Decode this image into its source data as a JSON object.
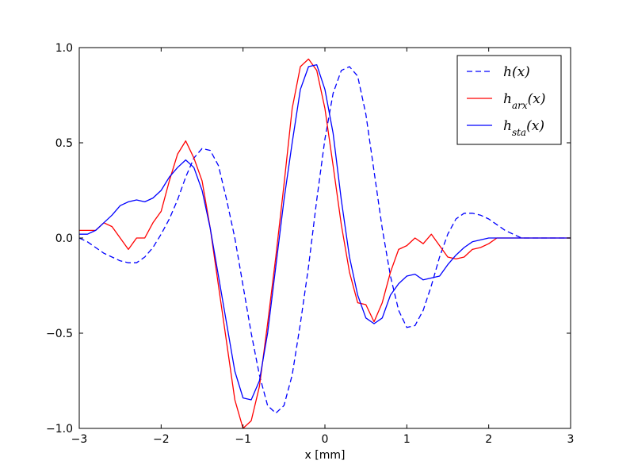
{
  "chart_data": {
    "type": "line",
    "xlabel": "x [mm]",
    "ylabel": "",
    "xlim": [
      -3,
      3
    ],
    "ylim": [
      -1.0,
      1.0
    ],
    "xticks": [
      -3,
      -2,
      -1,
      0,
      1,
      2,
      3
    ],
    "xtick_labels": [
      "−3",
      "−2",
      "−1",
      "0",
      "1",
      "2",
      "3"
    ],
    "yticks": [
      -1.0,
      -0.5,
      0.0,
      0.5,
      1.0
    ],
    "ytick_labels": [
      "−1.0",
      "−0.5",
      "0.0",
      "0.5",
      "1.0"
    ],
    "grid": false,
    "legend_position": "top-right",
    "series": [
      {
        "name": "h(x)",
        "legend_label": "h(x)",
        "color": "#0000ff",
        "dashed": true,
        "x": [
          -3.0,
          -2.9,
          -2.8,
          -2.7,
          -2.6,
          -2.5,
          -2.4,
          -2.3,
          -2.2,
          -2.1,
          -2.0,
          -1.9,
          -1.8,
          -1.7,
          -1.6,
          -1.5,
          -1.4,
          -1.3,
          -1.2,
          -1.1,
          -1.0,
          -0.9,
          -0.8,
          -0.7,
          -0.6,
          -0.5,
          -0.4,
          -0.3,
          -0.2,
          -0.1,
          0.0,
          0.1,
          0.2,
          0.3,
          0.4,
          0.5,
          0.6,
          0.7,
          0.8,
          0.9,
          1.0,
          1.1,
          1.2,
          1.3,
          1.4,
          1.5,
          1.6,
          1.7,
          1.8,
          1.9,
          2.0,
          2.1,
          2.2,
          2.3,
          2.4,
          2.5,
          2.6,
          2.7,
          2.8,
          2.9,
          3.0
        ],
        "y": [
          0.0,
          -0.02,
          -0.05,
          -0.08,
          -0.1,
          -0.12,
          -0.13,
          -0.13,
          -0.1,
          -0.05,
          0.02,
          0.1,
          0.2,
          0.32,
          0.42,
          0.47,
          0.46,
          0.38,
          0.2,
          0.0,
          -0.25,
          -0.5,
          -0.72,
          -0.88,
          -0.92,
          -0.88,
          -0.72,
          -0.45,
          -0.15,
          0.2,
          0.52,
          0.76,
          0.88,
          0.9,
          0.85,
          0.65,
          0.35,
          0.05,
          -0.2,
          -0.38,
          -0.47,
          -0.46,
          -0.38,
          -0.25,
          -0.1,
          0.02,
          0.1,
          0.13,
          0.13,
          0.12,
          0.1,
          0.07,
          0.04,
          0.02,
          0.0,
          0.0,
          0.0,
          0.0,
          0.0,
          0.0,
          0.0
        ]
      },
      {
        "name": "h_arx(x)",
        "legend_label": "h",
        "legend_sub": "arx",
        "legend_tail": "(x)",
        "color": "#ff0000",
        "dashed": false,
        "x": [
          -3.0,
          -2.9,
          -2.8,
          -2.7,
          -2.6,
          -2.5,
          -2.4,
          -2.3,
          -2.2,
          -2.1,
          -2.0,
          -1.9,
          -1.8,
          -1.7,
          -1.6,
          -1.5,
          -1.4,
          -1.3,
          -1.2,
          -1.1,
          -1.0,
          -0.9,
          -0.8,
          -0.7,
          -0.6,
          -0.5,
          -0.4,
          -0.3,
          -0.2,
          -0.1,
          0.0,
          0.1,
          0.2,
          0.3,
          0.4,
          0.5,
          0.6,
          0.7,
          0.8,
          0.9,
          1.0,
          1.1,
          1.2,
          1.3,
          1.4,
          1.5,
          1.6,
          1.7,
          1.8,
          1.9,
          2.0,
          2.1,
          2.2,
          2.3,
          2.4,
          2.5,
          2.6,
          2.7,
          2.8,
          2.9,
          3.0
        ],
        "y": [
          0.04,
          0.04,
          0.04,
          0.08,
          0.06,
          0.0,
          -0.06,
          0.0,
          0.0,
          0.08,
          0.14,
          0.3,
          0.44,
          0.51,
          0.42,
          0.3,
          0.05,
          -0.25,
          -0.55,
          -0.85,
          -1.0,
          -0.96,
          -0.78,
          -0.45,
          -0.1,
          0.28,
          0.68,
          0.9,
          0.94,
          0.88,
          0.68,
          0.38,
          0.07,
          -0.18,
          -0.34,
          -0.35,
          -0.44,
          -0.34,
          -0.18,
          -0.06,
          -0.04,
          0.0,
          -0.03,
          0.02,
          -0.04,
          -0.1,
          -0.11,
          -0.1,
          -0.06,
          -0.05,
          -0.03,
          0.0,
          0.0,
          0.0,
          0.0,
          0.0,
          0.0,
          0.0,
          0.0,
          0.0,
          0.0
        ]
      },
      {
        "name": "h_sta(x)",
        "legend_label": "h",
        "legend_sub": "sta",
        "legend_tail": "(x)",
        "color": "#0000ff",
        "dashed": false,
        "x": [
          -3.0,
          -2.9,
          -2.8,
          -2.7,
          -2.6,
          -2.5,
          -2.4,
          -2.3,
          -2.2,
          -2.1,
          -2.0,
          -1.9,
          -1.8,
          -1.7,
          -1.6,
          -1.5,
          -1.4,
          -1.3,
          -1.2,
          -1.1,
          -1.0,
          -0.9,
          -0.8,
          -0.7,
          -0.6,
          -0.5,
          -0.4,
          -0.3,
          -0.2,
          -0.1,
          0.0,
          0.1,
          0.2,
          0.3,
          0.4,
          0.5,
          0.6,
          0.7,
          0.8,
          0.9,
          1.0,
          1.1,
          1.2,
          1.3,
          1.4,
          1.5,
          1.6,
          1.7,
          1.8,
          1.9,
          2.0,
          2.1,
          2.2,
          2.3,
          2.4,
          2.5,
          2.6,
          2.7,
          2.8,
          2.9,
          3.0
        ],
        "y": [
          0.02,
          0.02,
          0.04,
          0.08,
          0.12,
          0.17,
          0.19,
          0.2,
          0.19,
          0.21,
          0.25,
          0.32,
          0.37,
          0.41,
          0.37,
          0.25,
          0.05,
          -0.2,
          -0.45,
          -0.7,
          -0.84,
          -0.85,
          -0.75,
          -0.5,
          -0.15,
          0.2,
          0.5,
          0.78,
          0.9,
          0.91,
          0.78,
          0.55,
          0.2,
          -0.1,
          -0.3,
          -0.42,
          -0.45,
          -0.42,
          -0.3,
          -0.24,
          -0.2,
          -0.19,
          -0.22,
          -0.21,
          -0.2,
          -0.14,
          -0.09,
          -0.05,
          -0.02,
          -0.01,
          0.0,
          0.0,
          0.0,
          0.0,
          0.0,
          0.0,
          0.0,
          0.0,
          0.0,
          0.0,
          0.0
        ]
      }
    ]
  }
}
